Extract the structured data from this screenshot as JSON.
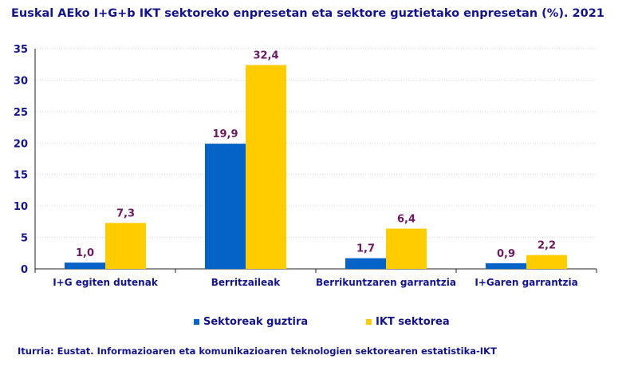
{
  "title": "Euskal AEko I+G+b IKT sektoreko enpresetan eta sektore guztietako enpresetan (%). 2021",
  "source": "Iturria: Eustat. Informazioaren eta komunikazioaren teknologien sektorearen estatistika-IKT",
  "colors": {
    "series1": "#0563c8",
    "series2": "#ffcc00",
    "text": "#14148a",
    "data_label": "#6b1a63",
    "grid": "#d9d9d9"
  },
  "chart_data": {
    "type": "bar",
    "categories": [
      "I+G egiten dutenak",
      "Berritzaileak",
      "Berrikuntzaren garrantzia",
      "I+Garen garrantzia"
    ],
    "series": [
      {
        "name": "Sektoreak guztira",
        "values": [
          1.0,
          19.9,
          1.7,
          0.9
        ],
        "labels": [
          "1,0",
          "19,9",
          "1,7",
          "0,9"
        ]
      },
      {
        "name": "IKT sektorea",
        "values": [
          7.3,
          32.4,
          6.4,
          2.2
        ],
        "labels": [
          "7,3",
          "32,4",
          "6,4",
          "2,2"
        ]
      }
    ],
    "ylim": [
      0,
      35
    ],
    "yticks": [
      "0",
      "5",
      "10",
      "15",
      "20",
      "25",
      "30",
      "35"
    ],
    "grid": true,
    "legend_position": "bottom"
  }
}
